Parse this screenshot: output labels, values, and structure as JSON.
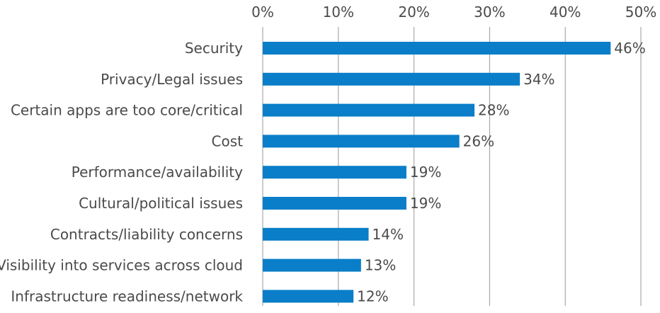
{
  "chart_data": {
    "type": "bar",
    "orientation": "horizontal",
    "categories": [
      "Security",
      "Privacy/Legal issues",
      "Certain apps are too core/critical",
      "Cost",
      "Performance/availability",
      "Cultural/political issues",
      "Contracts/liability concerns",
      "Visibility into services across cloud",
      "Infrastructure readiness/network"
    ],
    "values": [
      46,
      34,
      28,
      26,
      19,
      19,
      14,
      13,
      12
    ],
    "value_labels": [
      "46%",
      "34%",
      "28%",
      "26%",
      "19%",
      "19%",
      "14%",
      "13%",
      "12%"
    ],
    "xlim": [
      0,
      50
    ],
    "x_ticks": [
      0,
      10,
      20,
      30,
      40,
      50
    ],
    "x_tick_labels": [
      "0%",
      "10%",
      "20%",
      "30%",
      "40%",
      "50%"
    ],
    "x_axis_position": "top",
    "grid": true,
    "bar_color": "#0a7ec8",
    "grid_color": "#9a9a9a",
    "text_color": "#4a4a4a"
  }
}
